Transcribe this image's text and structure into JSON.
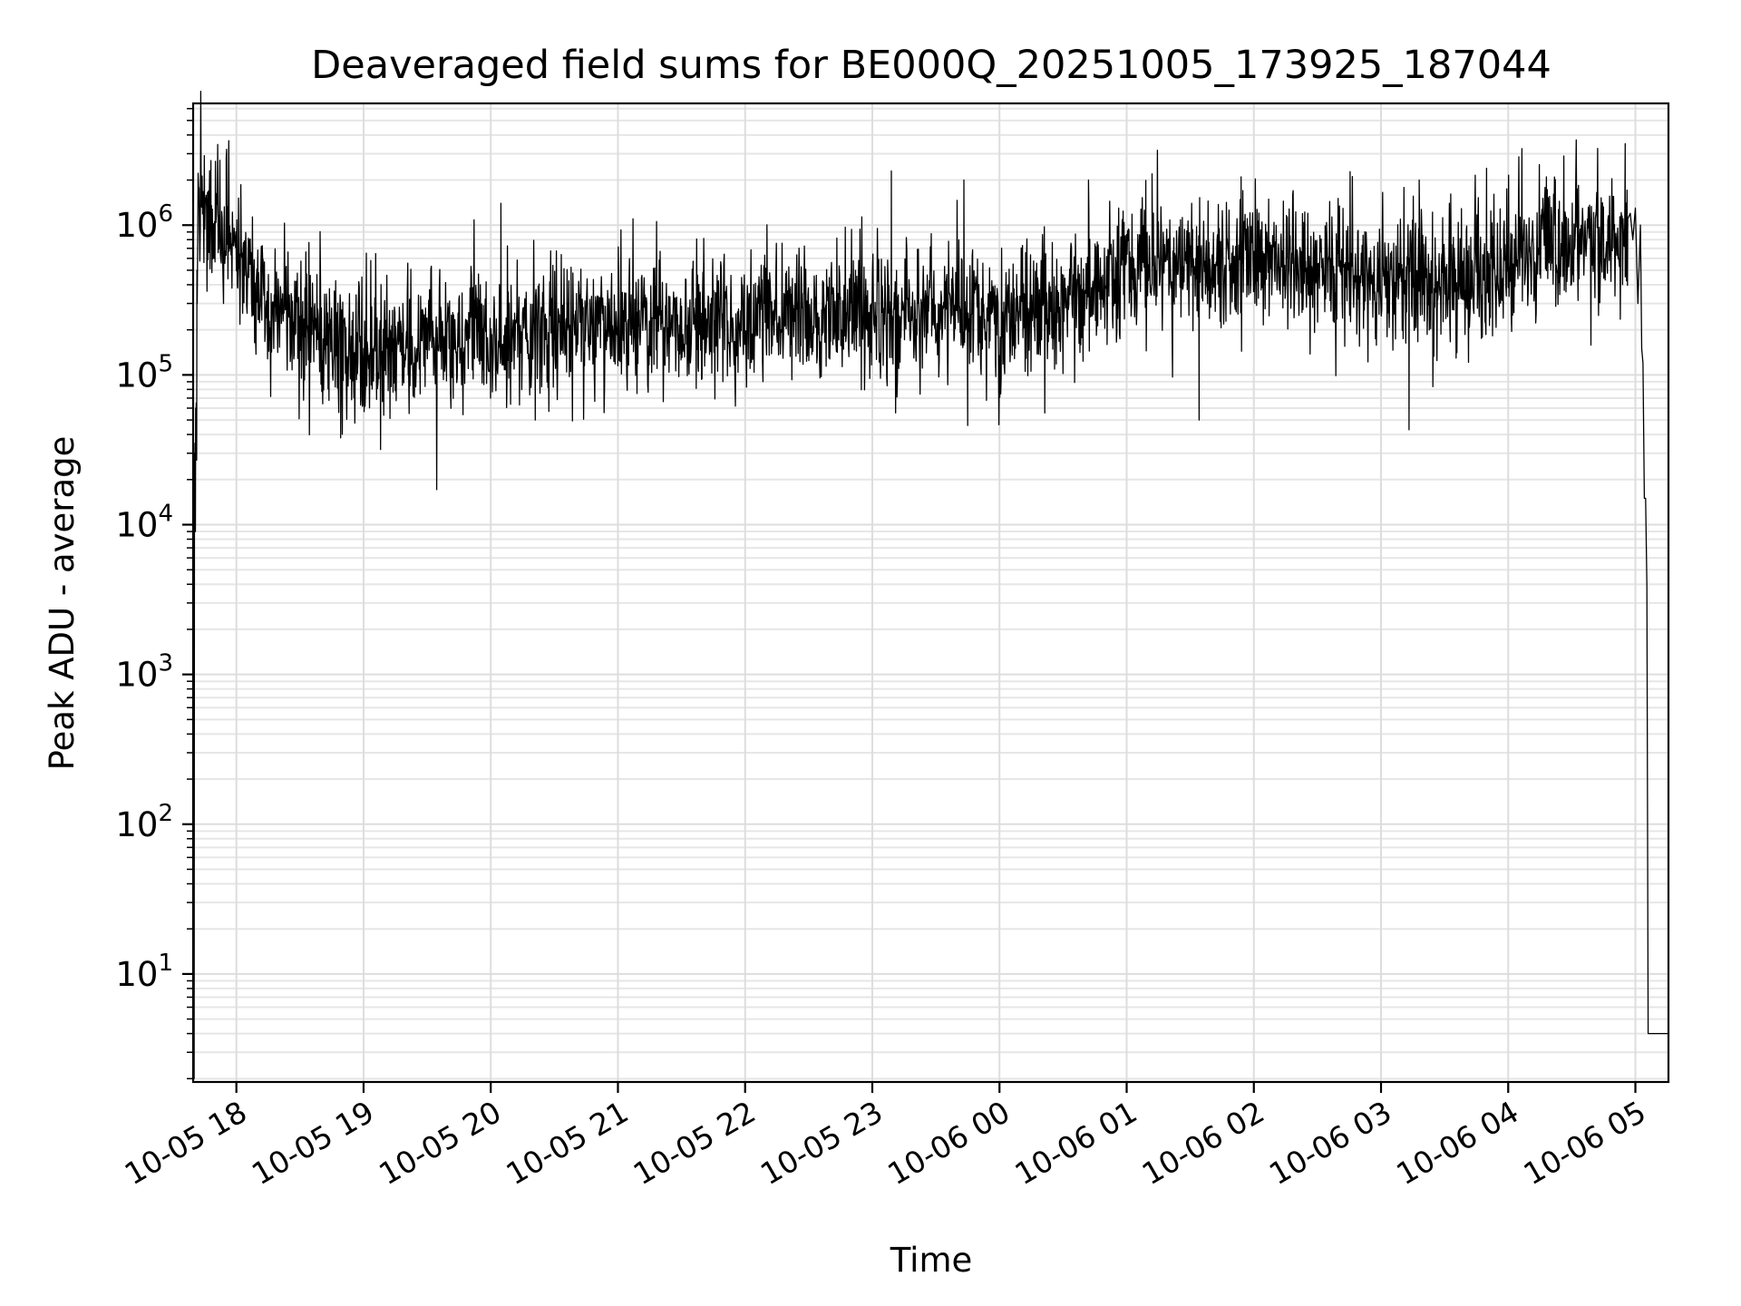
{
  "chart_data": {
    "type": "line",
    "title": "Deaveraged field sums for BE000Q_20251005_173925_187044",
    "xlabel": "Time",
    "ylabel": "Peak ADU - average",
    "yscale": "log",
    "ylim": [
      1.9,
      6500000
    ],
    "xlim_hours_since_2025-10-05_18:00": [
      -0.34,
      11.26
    ],
    "grid": "major and minor",
    "line_color": "#000000",
    "x_ticks": [
      {
        "hour": 0,
        "label": "10-05 18"
      },
      {
        "hour": 1,
        "label": "10-05 19"
      },
      {
        "hour": 2,
        "label": "10-05 20"
      },
      {
        "hour": 3,
        "label": "10-05 21"
      },
      {
        "hour": 4,
        "label": "10-05 22"
      },
      {
        "hour": 5,
        "label": "10-05 23"
      },
      {
        "hour": 6,
        "label": "10-06 00"
      },
      {
        "hour": 7,
        "label": "10-06 01"
      },
      {
        "hour": 8,
        "label": "10-06 02"
      },
      {
        "hour": 9,
        "label": "10-06 03"
      },
      {
        "hour": 10,
        "label": "10-06 04"
      },
      {
        "hour": 11,
        "label": "10-06 05"
      }
    ],
    "y_ticks": [
      {
        "value": 10,
        "base": "10",
        "exp": "1"
      },
      {
        "value": 100,
        "base": "10",
        "exp": "2"
      },
      {
        "value": 1000,
        "base": "10",
        "exp": "3"
      },
      {
        "value": 10000,
        "base": "10",
        "exp": "4"
      },
      {
        "value": 100000,
        "base": "10",
        "exp": "5"
      },
      {
        "value": 1000000,
        "base": "10",
        "exp": "6"
      }
    ],
    "series": [
      {
        "name": "deaveraged field sum",
        "sample_interval_hours": 0.0035,
        "baseline": {
          "hours": [
            -0.33,
            -0.3,
            -0.25,
            -0.2,
            -0.1,
            0.0,
            0.2,
            0.5,
            0.8,
            1.0,
            1.5,
            2.0,
            2.5,
            3.0,
            3.5,
            4.0,
            4.5,
            5.0,
            5.5,
            6.0,
            6.5,
            7.0,
            7.5,
            8.0,
            8.5,
            9.0,
            9.5,
            10.0,
            10.5,
            10.9,
            11.05
          ],
          "values": [
            300000,
            1200000,
            1400000,
            1000000,
            900000,
            700000,
            300000,
            250000,
            150000,
            140000,
            160000,
            170000,
            190000,
            200000,
            210000,
            230000,
            250000,
            260000,
            250000,
            230000,
            280000,
            500000,
            550000,
            550000,
            500000,
            420000,
            420000,
            550000,
            750000,
            800000,
            850000
          ]
        },
        "startup": {
          "hours": [
            -0.335,
            -0.332,
            -0.329,
            -0.327,
            -0.325,
            -0.322,
            -0.32,
            -0.318,
            -0.316,
            -0.314,
            -0.312,
            -0.31,
            -0.308
          ],
          "values": [
            2,
            2,
            30000,
            20000,
            35000,
            9000,
            60000,
            40000,
            65000,
            30000,
            27000,
            500000,
            300000
          ]
        },
        "spikes": [
          {
            "hour": -0.2,
            "value": 2700000
          },
          {
            "hour": -0.08,
            "value": 2800000
          },
          {
            "hour": 2.08,
            "value": 1400000
          },
          {
            "hour": 5.15,
            "value": 2300000
          },
          {
            "hour": 5.72,
            "value": 2000000
          },
          {
            "hour": 6.7,
            "value": 2000000
          },
          {
            "hour": 7.2,
            "value": 2200000
          },
          {
            "hour": 7.9,
            "value": 2100000
          },
          {
            "hour": 9.3,
            "value": 2000000
          },
          {
            "hour": 9.83,
            "value": 2400000
          },
          {
            "hour": 10.3,
            "value": 2100000
          },
          {
            "hour": 10.92,
            "value": 3500000
          }
        ],
        "dips": [
          {
            "hour": 0.82,
            "value": 38000
          },
          {
            "hour": 2.35,
            "value": 50000
          },
          {
            "hour": 5.75,
            "value": 46000
          },
          {
            "hour": 7.57,
            "value": 50000
          },
          {
            "hour": 9.22,
            "value": 43000
          }
        ],
        "shutdown": {
          "hours": [
            10.94,
            10.96,
            10.98,
            11.0,
            11.02,
            11.04,
            11.05,
            11.06,
            11.07,
            11.08,
            11.09,
            11.1,
            11.12,
            11.15,
            11.18,
            11.2,
            11.22,
            11.24,
            11.255
          ],
          "values": [
            1100000,
            1200000,
            800000,
            1300000,
            300000,
            1000000,
            150000,
            120000,
            15000,
            15000,
            4000,
            4,
            4,
            4,
            4,
            4,
            4,
            4,
            4
          ]
        }
      }
    ]
  }
}
